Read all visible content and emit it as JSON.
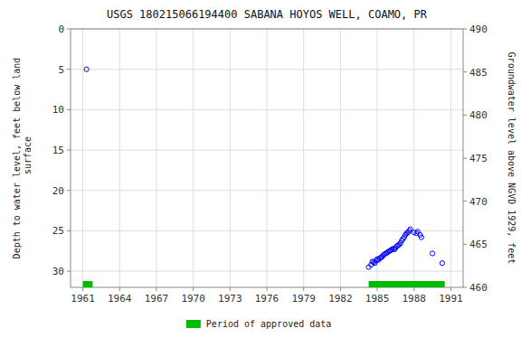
{
  "chart_data": {
    "type": "scatter",
    "title": "USGS 180215066194400 SABANA HOYOS WELL, COAMO, PR",
    "y_label": "Depth to water level, feet below land\n surface",
    "y2_label": "Groundwater level above NGVD 1929, feet",
    "xlim": [
      1960.0,
      1992.0
    ],
    "ylim": [
      32,
      0
    ],
    "y2lim": [
      460,
      490
    ],
    "xticks": [
      1961,
      1964,
      1967,
      1970,
      1973,
      1976,
      1979,
      1982,
      1985,
      1988,
      1991
    ],
    "yticks": [
      0,
      5,
      10,
      15,
      20,
      25,
      30
    ],
    "y2ticks": [
      460,
      465,
      470,
      475,
      480,
      485,
      490
    ],
    "grid": true,
    "legend": "bottom",
    "series": [
      {
        "type": "scatter",
        "color": "#0000ff",
        "marker": "circle",
        "x": [
          1961.3,
          1984.3,
          1984.5,
          1984.6,
          1984.7,
          1984.8,
          1984.9,
          1985.0,
          1985.1,
          1985.2,
          1985.3,
          1985.4,
          1985.5,
          1985.6,
          1985.7,
          1985.8,
          1985.9,
          1986.0,
          1986.1,
          1986.2,
          1986.3,
          1986.4,
          1986.5,
          1986.6,
          1986.7,
          1986.8,
          1986.9,
          1987.0,
          1987.1,
          1987.2,
          1987.3,
          1987.4,
          1987.5,
          1987.6,
          1987.7,
          1988.0,
          1988.2,
          1988.3,
          1988.5,
          1988.6,
          1989.5,
          1990.3
        ],
        "values": [
          5.0,
          29.5,
          29.2,
          28.8,
          28.9,
          29.0,
          28.7,
          28.5,
          28.6,
          28.4,
          28.3,
          28.2,
          28.0,
          27.9,
          27.8,
          27.7,
          27.6,
          27.5,
          27.4,
          27.3,
          27.2,
          27.3,
          27.1,
          26.9,
          26.8,
          26.7,
          26.5,
          26.2,
          26.0,
          25.8,
          25.5,
          25.3,
          25.2,
          25.0,
          24.8,
          25.2,
          25.3,
          25.1,
          25.5,
          25.8,
          27.8,
          29.0
        ]
      },
      {
        "type": "period",
        "name": "Period of approved data",
        "color": "#00bb00",
        "starts": [
          1961.0,
          1984.3
        ],
        "ends": [
          1961.8,
          1990.5
        ]
      }
    ]
  }
}
